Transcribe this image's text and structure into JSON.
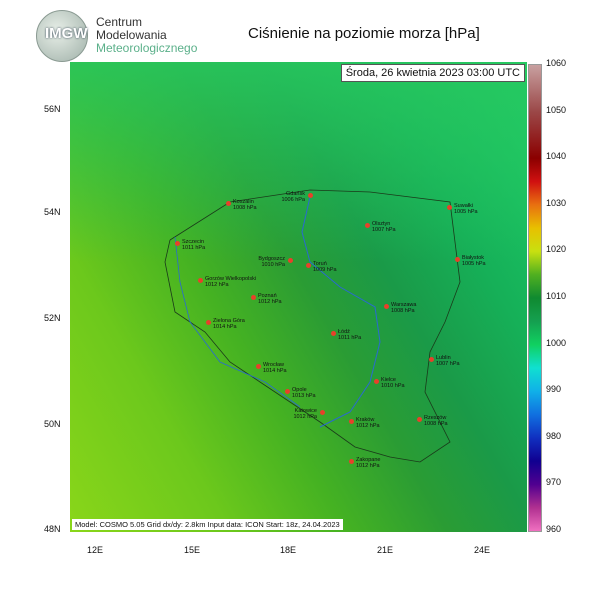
{
  "logo": {
    "text": "IMGW"
  },
  "org": [
    "Centrum",
    "Modelowania",
    "Meteorologicznego"
  ],
  "title": "Ciśnienie na poziomie morza [hPa]",
  "date": "Środa, 26 kwietnia 2023 03:00 UTC",
  "info": "Model: COSMO 5.05  Grid dx/dy: 2.8km  Input data: ICON  Start: 18z, 24.04.2023",
  "lon_ticks": [
    "12E",
    "15E",
    "18E",
    "21E",
    "24E"
  ],
  "lat_ticks": [
    "56N",
    "54N",
    "52N",
    "50N",
    "48N"
  ],
  "colorbar": {
    "labels": [
      "1060",
      "1050",
      "1040",
      "1030",
      "1020",
      "1010",
      "1000",
      "990",
      "980",
      "970",
      "960"
    ]
  },
  "cities": [
    {
      "name": "Koszalin",
      "value": "1008 hPa"
    },
    {
      "name": "Gdańsk",
      "value": "1006 hPa"
    },
    {
      "name": "Szczecin",
      "value": "1011 hPa"
    },
    {
      "name": "Bydgoszcz",
      "value": "1010 hPa"
    },
    {
      "name": "Toruń",
      "value": "1009 hPa"
    },
    {
      "name": "Olsztyn",
      "value": "1007 hPa"
    },
    {
      "name": "Suwałki",
      "value": "1005 hPa"
    },
    {
      "name": "Białystok",
      "value": "1005 hPa"
    },
    {
      "name": "Gorzów Wielkopolski",
      "value": "1012 hPa"
    },
    {
      "name": "Poznań",
      "value": "1012 hPa"
    },
    {
      "name": "Warszawa",
      "value": "1008 hPa"
    },
    {
      "name": "Zielona Góra",
      "value": "1014 hPa"
    },
    {
      "name": "Łódź",
      "value": "1011 hPa"
    },
    {
      "name": "Lublin",
      "value": "1007 hPa"
    },
    {
      "name": "Wrocław",
      "value": "1014 hPa"
    },
    {
      "name": "Opole",
      "value": "1013 hPa"
    },
    {
      "name": "Kielce",
      "value": "1010 hPa"
    },
    {
      "name": "Katowice",
      "value": "1012 hPa"
    },
    {
      "name": "Kraków",
      "value": "1012 hPa"
    },
    {
      "name": "Rzeszów",
      "value": "1008 hPa"
    },
    {
      "name": "Zakopane",
      "value": "1012 hPa"
    }
  ]
}
